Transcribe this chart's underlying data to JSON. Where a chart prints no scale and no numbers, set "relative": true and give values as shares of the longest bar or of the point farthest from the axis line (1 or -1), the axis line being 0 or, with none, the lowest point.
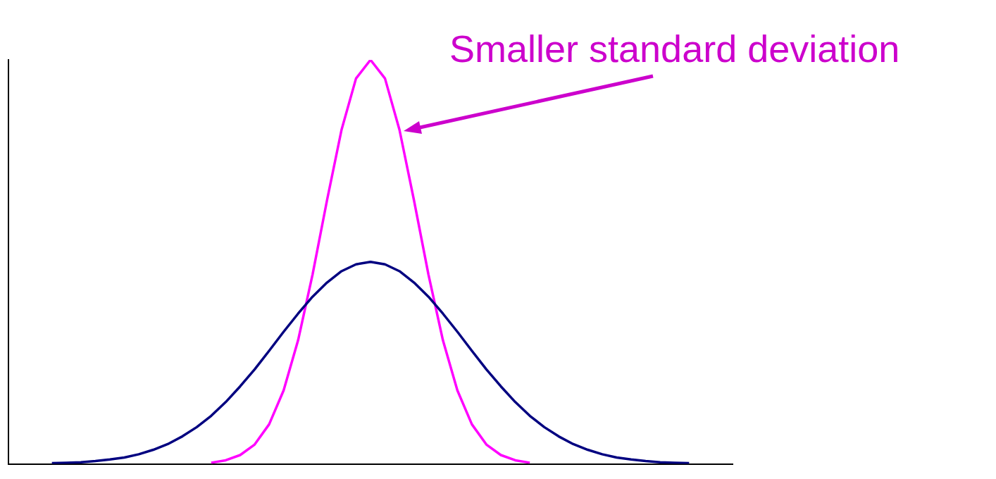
{
  "chart_data": {
    "type": "line",
    "relative": true,
    "grid": false,
    "legend": false,
    "marker": "none",
    "categories": [
      null,
      null,
      null,
      null,
      null,
      null,
      null,
      null,
      null,
      null,
      null,
      null,
      null,
      null,
      null,
      null,
      null,
      null,
      null,
      null,
      null,
      null,
      null,
      null,
      null,
      null,
      null,
      null,
      null,
      null,
      null,
      null,
      null,
      null,
      null,
      null,
      null,
      null,
      null,
      null,
      null,
      null,
      null,
      null,
      null,
      null,
      null,
      null,
      null,
      null,
      null
    ],
    "series": [
      {
        "color": "#000080",
        "values": [
          null,
          null,
          null,
          0.002,
          0.003,
          0.004,
          0.007,
          0.011,
          0.016,
          0.024,
          0.035,
          0.049,
          0.068,
          0.091,
          0.119,
          0.153,
          0.192,
          0.234,
          0.28,
          0.327,
          0.372,
          0.414,
          0.449,
          0.477,
          0.494,
          0.5,
          0.494,
          0.477,
          0.449,
          0.414,
          0.372,
          0.327,
          0.28,
          0.234,
          0.192,
          0.153,
          0.119,
          0.091,
          0.068,
          0.049,
          0.035,
          0.024,
          0.016,
          0.011,
          0.007,
          0.004,
          0.003,
          0.002,
          null,
          null,
          null
        ]
      },
      {
        "color": "#ff00ff",
        "values": [
          null,
          null,
          null,
          null,
          null,
          null,
          null,
          null,
          null,
          null,
          null,
          null,
          null,
          null,
          0.003,
          0.009,
          0.022,
          0.048,
          0.098,
          0.182,
          0.306,
          0.469,
          0.653,
          0.827,
          0.954,
          1,
          0.954,
          0.827,
          0.653,
          0.469,
          0.306,
          0.182,
          0.098,
          0.048,
          0.022,
          0.009,
          0.003,
          null,
          null,
          null,
          null,
          null,
          null,
          null,
          null,
          null,
          null,
          null,
          null,
          null,
          null
        ]
      }
    ],
    "annotations": [
      "Smaller standard deviation"
    ]
  }
}
